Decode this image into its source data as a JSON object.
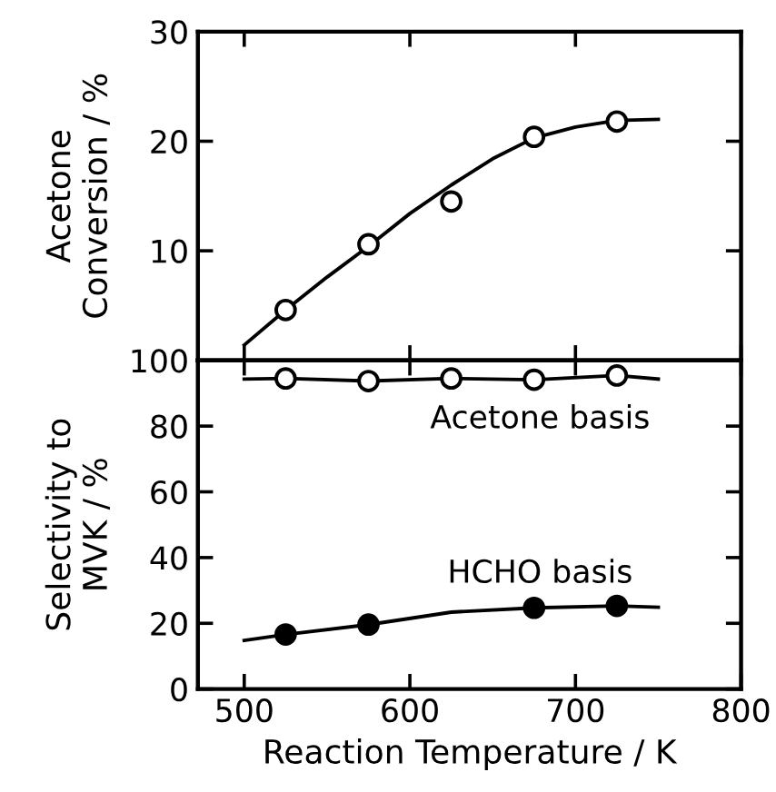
{
  "chart_data": [
    {
      "type": "scatter",
      "ylabel": "Acetone\nConversion / %",
      "xlim": [
        472,
        800
      ],
      "ylim": [
        0,
        30
      ],
      "xticks": [
        500,
        600,
        700,
        800
      ],
      "yticks": [
        10,
        20,
        30
      ],
      "tick_labels": "y",
      "grid": false,
      "legend": false,
      "series": [
        {
          "color": "#ffffff",
          "marker": "circle",
          "x": [
            525,
            575,
            625,
            675,
            725
          ],
          "values": [
            4.6,
            10.6,
            14.5,
            20.4,
            21.8
          ]
        },
        {
          "type": "line",
          "color": "#000000",
          "marker": "none",
          "line_style": "solid",
          "x": [
            500,
            525,
            550,
            575,
            600,
            625,
            650,
            675,
            700,
            725,
            750
          ],
          "values": [
            1.4,
            4.6,
            7.6,
            10.4,
            13.4,
            16.0,
            18.4,
            20.3,
            21.3,
            21.9,
            22.0
          ]
        }
      ]
    },
    {
      "type": "scatter",
      "ylabel": "Selectivity to\nMVK / %",
      "xlabel": "Reaction Temperature / K",
      "xlim": [
        472,
        800
      ],
      "ylim": [
        0,
        100
      ],
      "xticks": [
        500,
        600,
        700,
        800
      ],
      "yticks": [
        0,
        20,
        40,
        60,
        80,
        100
      ],
      "grid": false,
      "legend": false,
      "annotations": [
        "Acetone basis",
        "HCHO basis"
      ],
      "series": [
        {
          "type": "line",
          "color": "#000000",
          "marker": "none",
          "line_style": "solid",
          "x": [
            500,
            525,
            575,
            625,
            675,
            725,
            750
          ],
          "values": [
            94.3,
            94.5,
            93.7,
            94.5,
            94.1,
            95.4,
            94.3
          ]
        },
        {
          "color": "#ffffff",
          "marker": "circle",
          "x": [
            525,
            575,
            625,
            675,
            725
          ],
          "values": [
            94.5,
            93.7,
            94.5,
            94.1,
            95.4
          ]
        },
        {
          "type": "line",
          "color": "#000000",
          "marker": "none",
          "line_style": "solid",
          "x": [
            500,
            525,
            575,
            625,
            675,
            725,
            750
          ],
          "values": [
            14.8,
            16.6,
            19.6,
            23.4,
            24.7,
            25.3,
            24.9
          ]
        },
        {
          "color": "#000000",
          "marker": "circle",
          "x": [
            525,
            575,
            675,
            725
          ],
          "values": [
            16.6,
            19.6,
            24.7,
            25.3
          ]
        }
      ]
    }
  ]
}
